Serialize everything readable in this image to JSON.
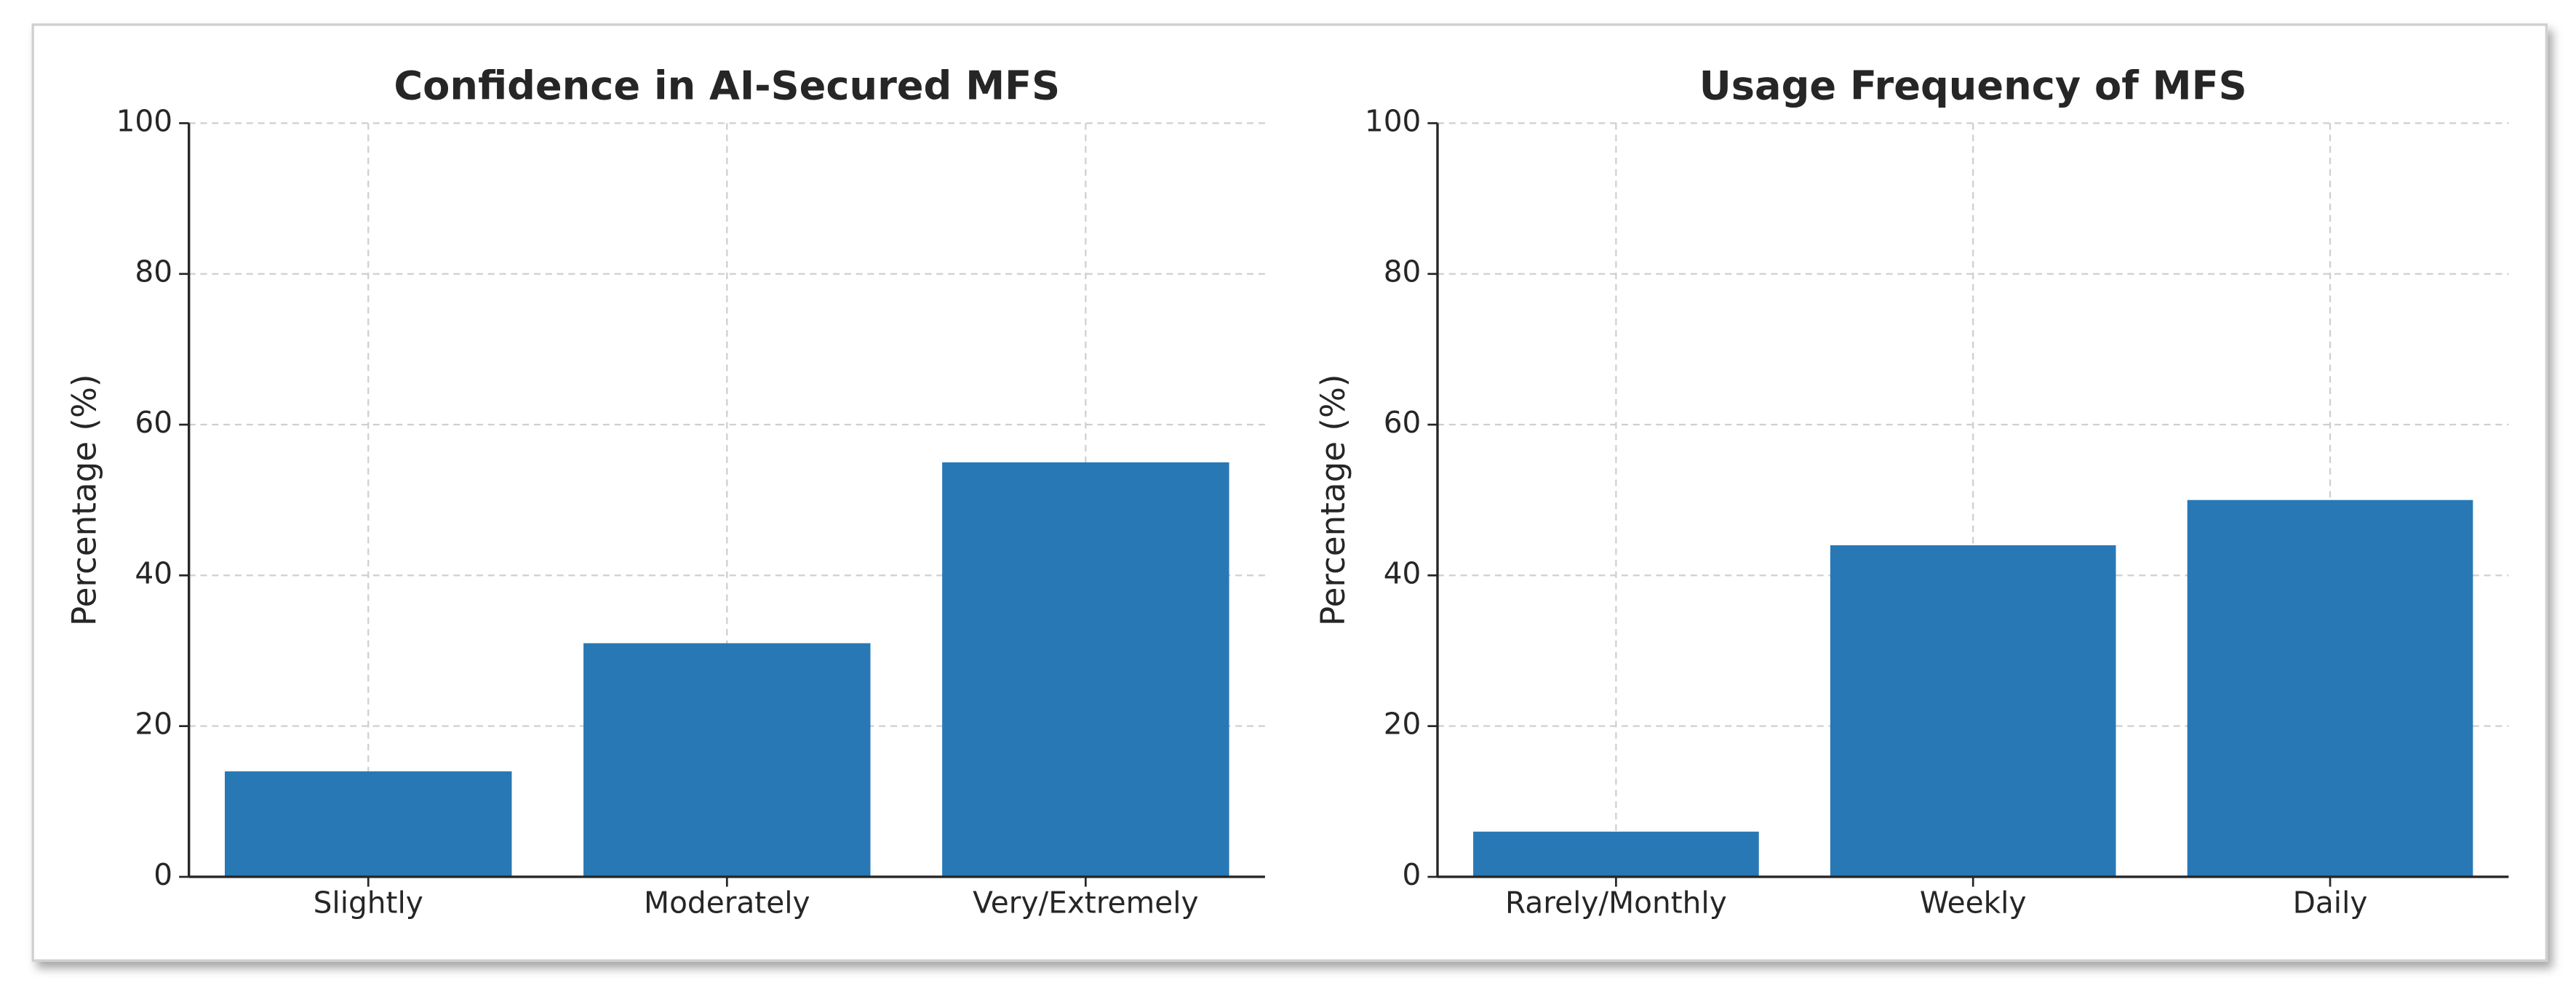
{
  "chart_data": [
    {
      "type": "bar",
      "title": "Confidence in AI-Secured MFS",
      "ylabel": "Percentage (%)",
      "categories": [
        "Slightly",
        "Moderately",
        "Very/Extremely"
      ],
      "values": [
        14,
        31,
        55
      ],
      "color": "#2878b5",
      "ylim": [
        0,
        100
      ],
      "yticks": [
        0,
        20,
        40,
        60,
        80,
        100
      ],
      "grid": true
    },
    {
      "type": "bar",
      "title": "Usage Frequency of MFS",
      "ylabel": "Percentage (%)",
      "categories": [
        "Rarely/Monthly",
        "Weekly",
        "Daily"
      ],
      "values": [
        6,
        44,
        50
      ],
      "color": "#2878b5",
      "ylim": [
        0,
        100
      ],
      "yticks": [
        0,
        20,
        40,
        60,
        80,
        100
      ],
      "grid": true
    }
  ]
}
